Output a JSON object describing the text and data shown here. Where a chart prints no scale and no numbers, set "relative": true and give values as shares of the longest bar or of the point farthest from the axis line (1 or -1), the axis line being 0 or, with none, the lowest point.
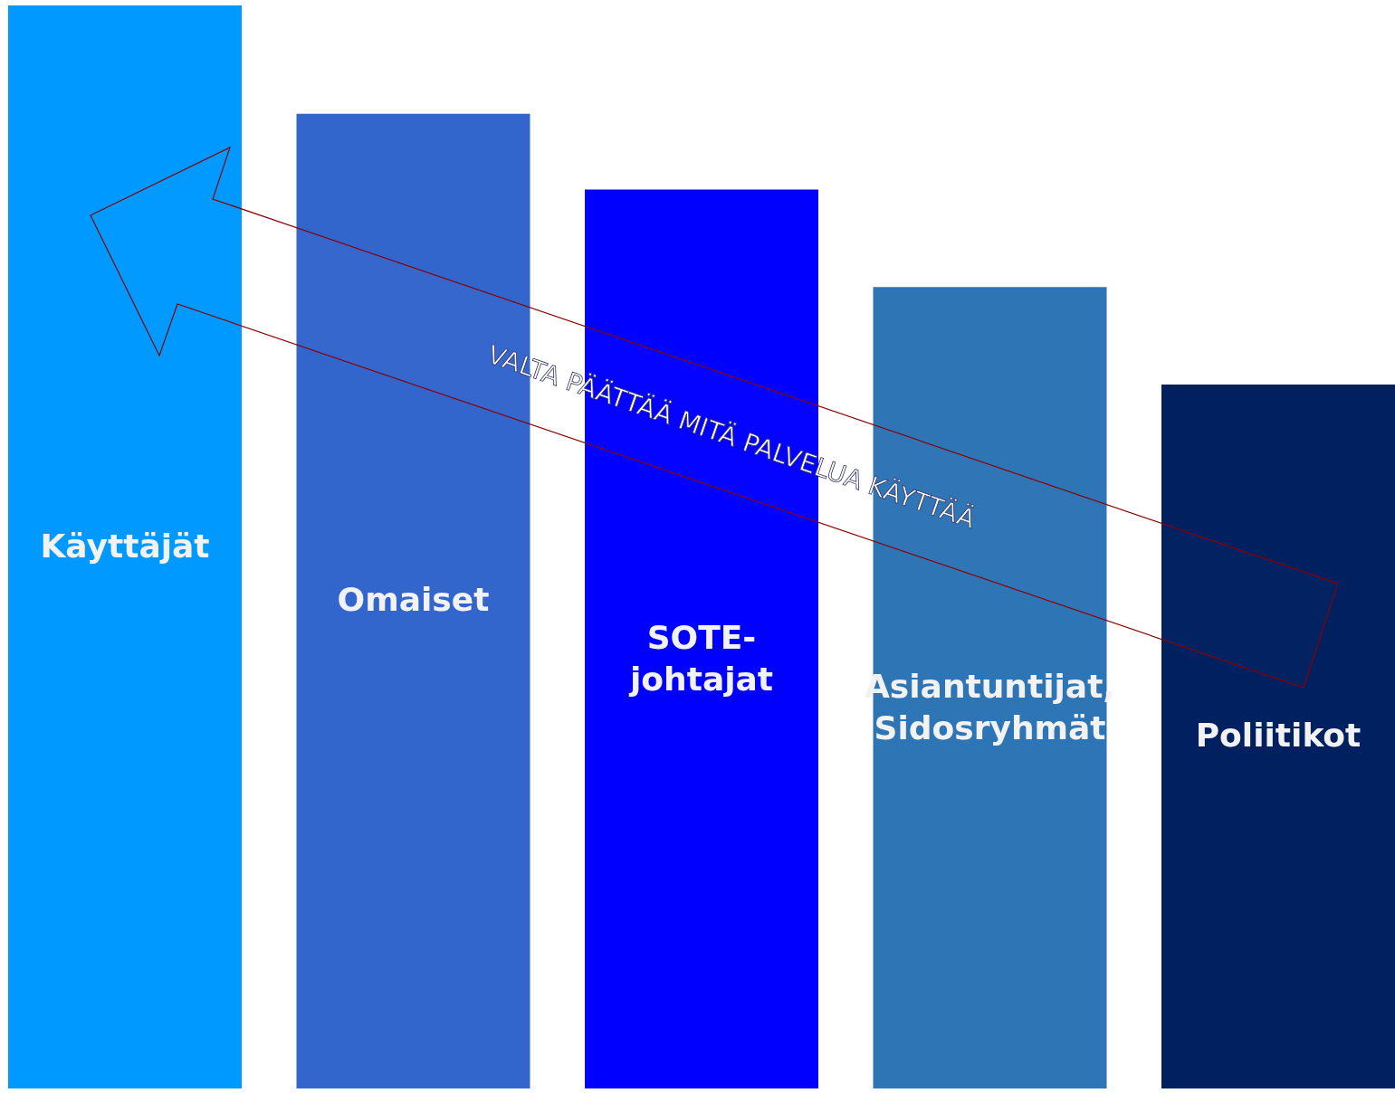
{
  "chart_data": {
    "type": "bar",
    "relative": true,
    "categories": [
      "Käyttäjät",
      "Omaiset",
      "SOTE-johtajat",
      "Asiantuntijat, Sidosryhmät",
      "Poliitikot"
    ],
    "values": [
      1,
      0.9,
      0.83,
      0.74,
      0.65
    ],
    "colors": [
      "#0099ff",
      "#3366cc",
      "#0000ff",
      "#2e75b6",
      "#002060"
    ],
    "annotations": [
      "VALTA PÄÄTTÄÄ MITÄ PALVELUA KÄYTTÄÄ"
    ]
  }
}
